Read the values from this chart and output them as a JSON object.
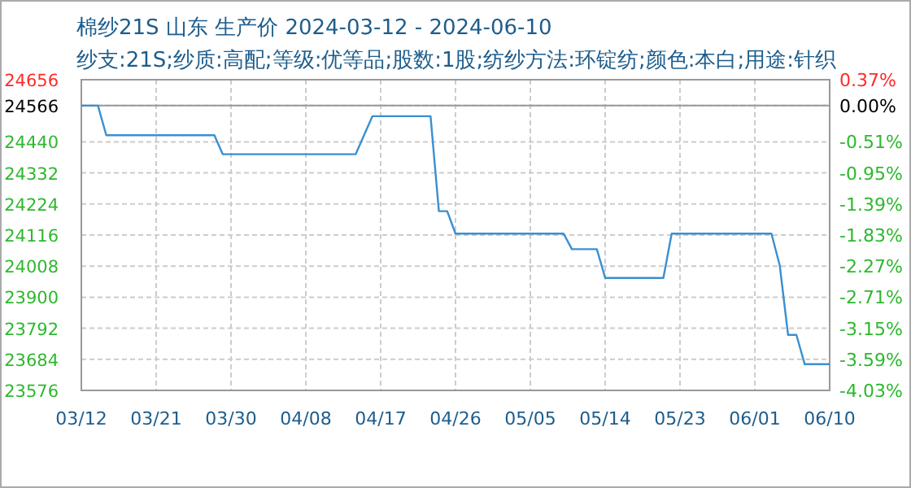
{
  "chart_data": {
    "type": "line",
    "title": "棉纱21S 山东 生产价 2024-03-12 - 2024-06-10",
    "subtitle": "纱支:21S;纱质:高配;等级:优等品;股数:1股;纺纱方法:环锭纺;颜色:本白;用途:针织",
    "series": [
      {
        "color": "#3a8fd0",
        "x": [
          "2024-03-12",
          "2024-03-14",
          "2024-03-15",
          "2024-03-28",
          "2024-03-29",
          "2024-04-14",
          "2024-04-16",
          "2024-04-23",
          "2024-04-24",
          "2024-04-25",
          "2024-04-26",
          "2024-05-09",
          "2024-05-10",
          "2024-05-13",
          "2024-05-14",
          "2024-05-21",
          "2024-05-22",
          "2024-06-03",
          "2024-06-04",
          "2024-06-05",
          "2024-06-06",
          "2024-06-07",
          "2024-06-10"
        ],
        "values": [
          24566,
          24566,
          24463,
          24463,
          24397,
          24397,
          24529,
          24529,
          24199,
          24199,
          24121,
          24121,
          24067,
          24067,
          23967,
          23967,
          24121,
          24121,
          24010,
          23769,
          23769,
          23667,
          23667
        ]
      }
    ],
    "xlim": [
      "2024-03-12",
      "2024-06-10"
    ],
    "xticks": [
      {
        "value": "2024-03-12",
        "label": "03/12"
      },
      {
        "value": "2024-03-21",
        "label": "03/21"
      },
      {
        "value": "2024-03-30",
        "label": "03/30"
      },
      {
        "value": "2024-04-08",
        "label": "04/08"
      },
      {
        "value": "2024-04-17",
        "label": "04/17"
      },
      {
        "value": "2024-04-26",
        "label": "04/26"
      },
      {
        "value": "2024-05-05",
        "label": "05/05"
      },
      {
        "value": "2024-05-14",
        "label": "05/14"
      },
      {
        "value": "2024-05-23",
        "label": "05/23"
      },
      {
        "value": "2024-06-01",
        "label": "06/01"
      },
      {
        "value": "2024-06-10",
        "label": "06/10"
      }
    ],
    "ylim": [
      23576,
      24656
    ],
    "yticks": [
      24656,
      24566,
      24440,
      24332,
      24224,
      24116,
      24008,
      23900,
      23792,
      23684,
      23576
    ],
    "y2lim": [
      -4.03,
      0.37
    ],
    "y2ticks": [
      {
        "value": 0.37,
        "label": "0.37%"
      },
      {
        "value": 0,
        "label": "0.00%"
      },
      {
        "value": -0.51,
        "label": "-0.51%"
      },
      {
        "value": -0.95,
        "label": "-0.95%"
      },
      {
        "value": -1.39,
        "label": "-1.39%"
      },
      {
        "value": -1.83,
        "label": "-1.83%"
      },
      {
        "value": -2.27,
        "label": "-2.27%"
      },
      {
        "value": -2.71,
        "label": "-2.71%"
      },
      {
        "value": -3.15,
        "label": "-3.15%"
      },
      {
        "value": -3.59,
        "label": "-3.59%"
      },
      {
        "value": -4.03,
        "label": "-4.03%"
      }
    ],
    "ref_lines": [
      {
        "axis": "y",
        "value": 24566,
        "color": "#999999"
      }
    ],
    "grid": true,
    "marker": "none",
    "line_style": "solid"
  }
}
